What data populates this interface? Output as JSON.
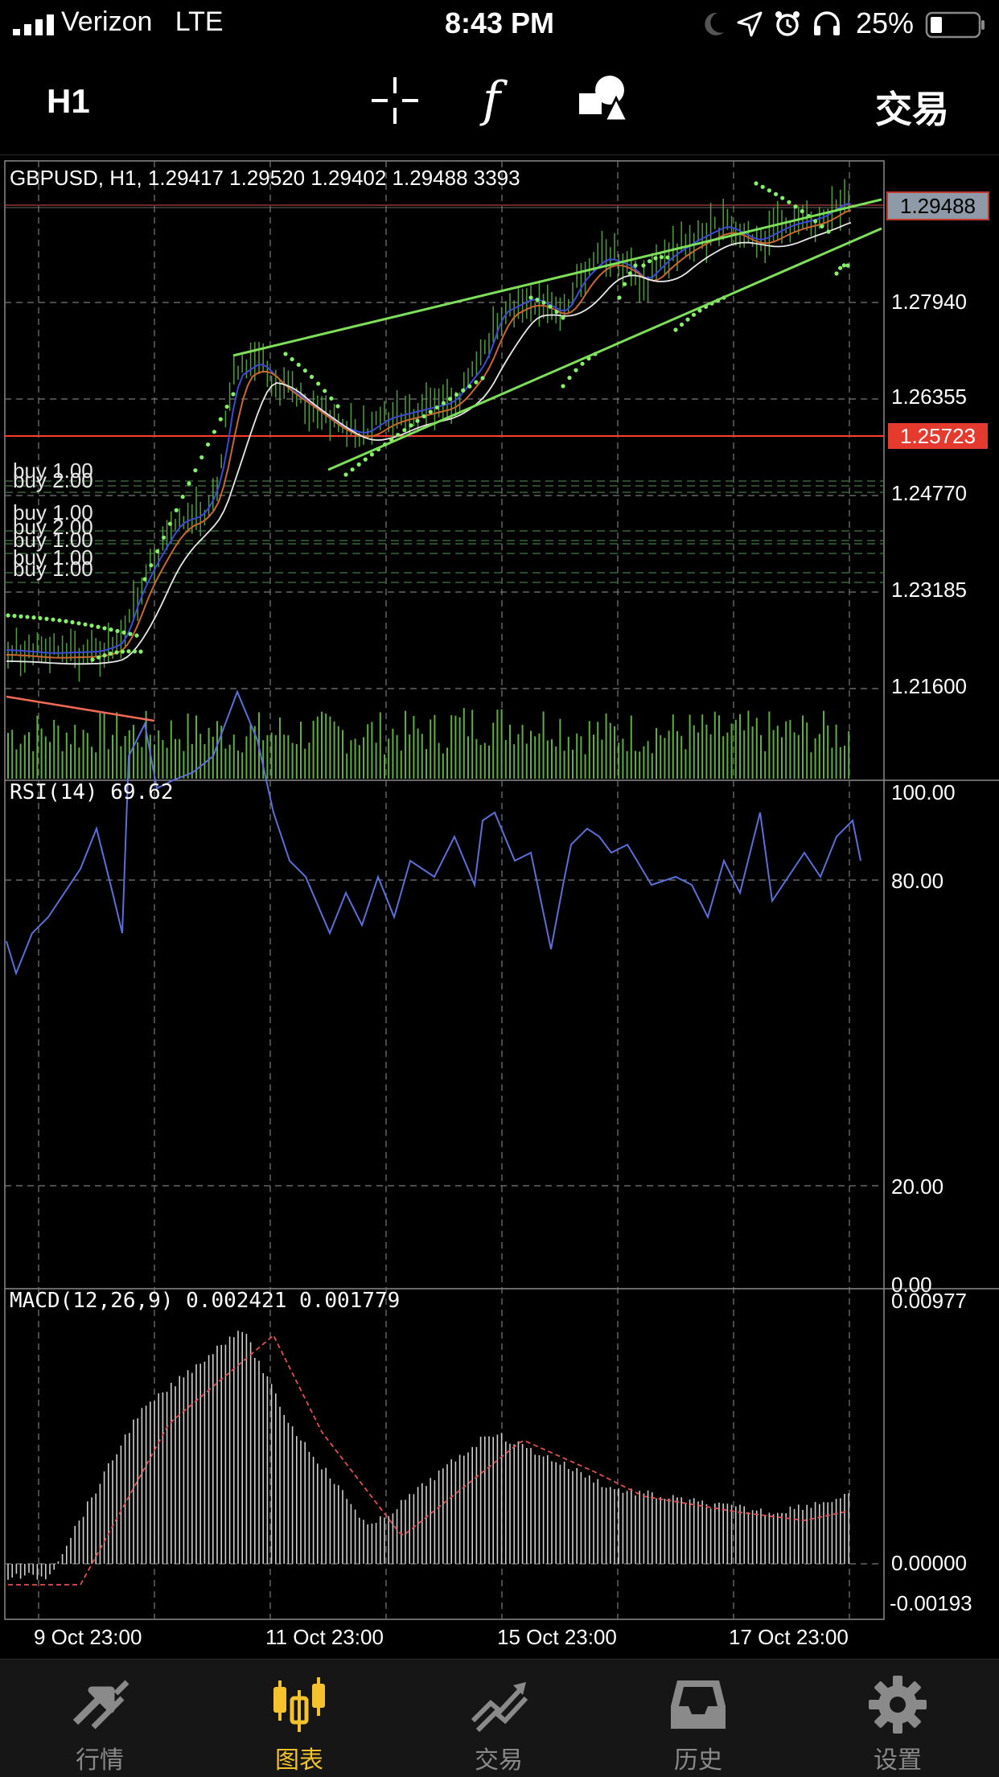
{
  "status_bar": {
    "carrier": "Verizon",
    "network": "LTE",
    "time": "8:43 PM",
    "battery": "25%"
  },
  "toolbar": {
    "period": "H1",
    "crosshair_icon": "crosshair-icon",
    "indicator_icon": "function-f-icon",
    "objects_icon": "shapes-icon",
    "trade_label": "交易"
  },
  "chart": {
    "header": "GBPUSD, H1, 1.29417 1.29520 1.29402 1.29488 3393",
    "price_labels": [
      "1.27940",
      "1.26355",
      "1.24770",
      "1.23185",
      "1.21600"
    ],
    "current_price": "1.29488",
    "level_price": "1.25723",
    "buy_labels": [
      "buy 1.00",
      "buy 2.00",
      "buy 1.00",
      "buy 2.00",
      "buy 1.00",
      "buy 1.00",
      "buy 1.00"
    ],
    "rsi_header": "RSI(14) 69.62",
    "rsi_levels": [
      "100.00",
      "80.00",
      "20.00",
      "0.00"
    ],
    "macd_header": "MACD(12,26,9) 0.002421 0.001779",
    "macd_levels": [
      "0.00977",
      "0.00000",
      "-0.00193"
    ],
    "time_labels": [
      "9 Oct 23:00",
      "11 Oct 23:00",
      "15 Oct 23:00",
      "17 Oct 23:00"
    ],
    "colors": {
      "trendline": "#7ddf5a",
      "sar": "#86f06a",
      "horizontal_level": "#ff3b30",
      "current_price_bg": "#8e9aa8",
      "rsi_line": "#5b6fd8",
      "volume": "#5fae3f"
    }
  },
  "tab_bar": {
    "tabs": [
      {
        "label": "行情",
        "icon": "quotes-arrows-icon",
        "active": false
      },
      {
        "label": "图表",
        "icon": "candlestick-chart-icon",
        "active": true
      },
      {
        "label": "交易",
        "icon": "trade-trend-icon",
        "active": false
      },
      {
        "label": "历史",
        "icon": "history-inbox-icon",
        "active": false
      },
      {
        "label": "设置",
        "icon": "gear-icon",
        "active": false
      }
    ]
  }
}
